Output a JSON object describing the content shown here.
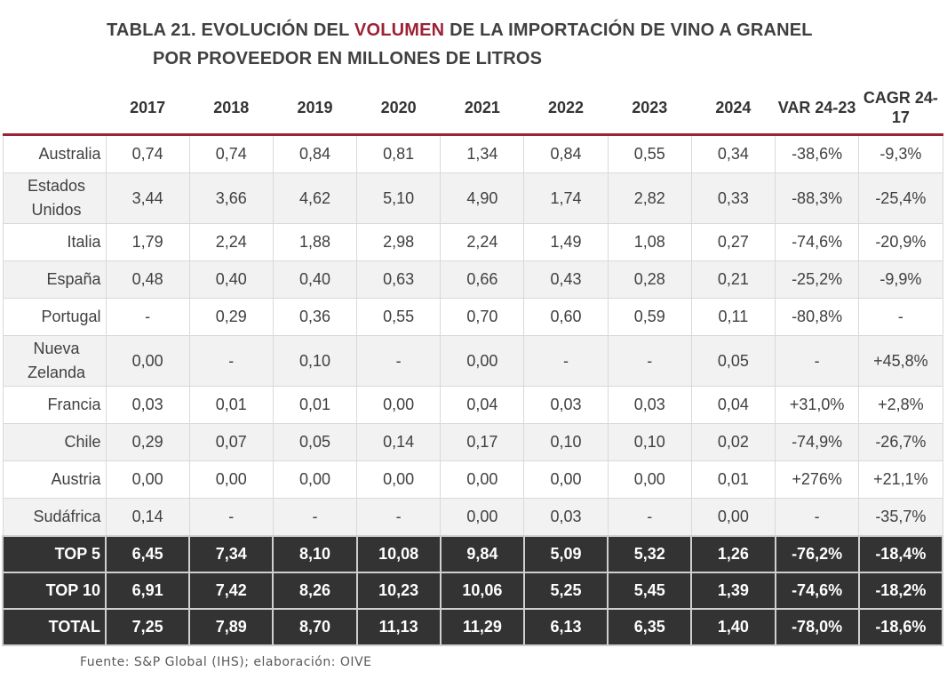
{
  "title": {
    "prefix": "TABLA 21.    EVOLUCIÓN DEL ",
    "highlight": "VOLUMEN",
    "suffix": " DE LA IMPORTACIÓN DE VINO A GRANEL",
    "line2": "POR PROVEEDOR EN MILLONES DE LITROS"
  },
  "headers": [
    "",
    "2017",
    "2018",
    "2019",
    "2020",
    "2021",
    "2022",
    "2023",
    "2024",
    "VAR 24-23",
    "CAGR 24-17"
  ],
  "rows": [
    {
      "label": "Australia",
      "cells": [
        "0,74",
        "0,74",
        "0,84",
        "0,81",
        "1,34",
        "0,84",
        "0,55",
        "0,34",
        "-38,6%",
        "-9,3%"
      ]
    },
    {
      "label": "Estados Unidos",
      "cells": [
        "3,44",
        "3,66",
        "4,62",
        "5,10",
        "4,90",
        "1,74",
        "2,82",
        "0,33",
        "-88,3%",
        "-25,4%"
      ]
    },
    {
      "label": "Italia",
      "cells": [
        "1,79",
        "2,24",
        "1,88",
        "2,98",
        "2,24",
        "1,49",
        "1,08",
        "0,27",
        "-74,6%",
        "-20,9%"
      ]
    },
    {
      "label": "España",
      "cells": [
        "0,48",
        "0,40",
        "0,40",
        "0,63",
        "0,66",
        "0,43",
        "0,28",
        "0,21",
        "-25,2%",
        "-9,9%"
      ]
    },
    {
      "label": "Portugal",
      "cells": [
        "-",
        "0,29",
        "0,36",
        "0,55",
        "0,70",
        "0,60",
        "0,59",
        "0,11",
        "-80,8%",
        "-"
      ]
    },
    {
      "label": "Nueva Zelanda",
      "cells": [
        "0,00",
        "-",
        "0,10",
        "-",
        "0,00",
        "-",
        "-",
        "0,05",
        "-",
        "+45,8%"
      ]
    },
    {
      "label": "Francia",
      "cells": [
        "0,03",
        "0,01",
        "0,01",
        "0,00",
        "0,04",
        "0,03",
        "0,03",
        "0,04",
        "+31,0%",
        "+2,8%"
      ]
    },
    {
      "label": "Chile",
      "cells": [
        "0,29",
        "0,07",
        "0,05",
        "0,14",
        "0,17",
        "0,10",
        "0,10",
        "0,02",
        "-74,9%",
        "-26,7%"
      ]
    },
    {
      "label": "Austria",
      "cells": [
        "0,00",
        "0,00",
        "0,00",
        "0,00",
        "0,00",
        "0,00",
        "0,00",
        "0,01",
        "+276%",
        "+21,1%"
      ]
    },
    {
      "label": "Sudáfrica",
      "cells": [
        "0,14",
        "-",
        "-",
        "-",
        "0,00",
        "0,03",
        "-",
        "0,00",
        "-",
        "-35,7%"
      ]
    }
  ],
  "totals": [
    {
      "label": "TOP 5",
      "cells": [
        "6,45",
        "7,34",
        "8,10",
        "10,08",
        "9,84",
        "5,09",
        "5,32",
        "1,26",
        "-76,2%",
        "-18,4%"
      ]
    },
    {
      "label": "TOP 10",
      "cells": [
        "6,91",
        "7,42",
        "8,26",
        "10,23",
        "10,06",
        "5,25",
        "5,45",
        "1,39",
        "-74,6%",
        "-18,2%"
      ]
    },
    {
      "label": "TOTAL",
      "cells": [
        "7,25",
        "7,89",
        "8,70",
        "11,13",
        "11,29",
        "6,13",
        "6,35",
        "1,40",
        "-78,0%",
        "-18,6%"
      ]
    }
  ],
  "source": "Fuente: S&P Global (IHS); elaboración: OIVE",
  "colors": {
    "accent": "#9b2335",
    "dark_row": "#333333",
    "alt_row": "#f2f2f2"
  }
}
